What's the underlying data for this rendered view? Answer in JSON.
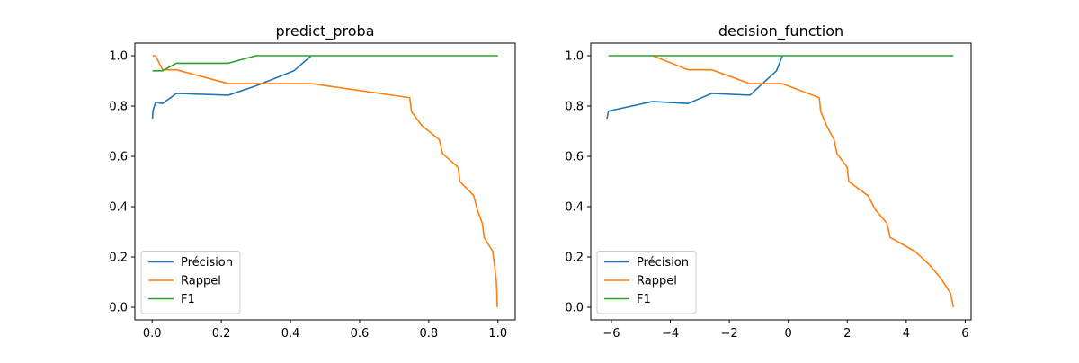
{
  "chart_data": [
    {
      "type": "line",
      "title": "predict_proba",
      "xlabel": "",
      "ylabel": "",
      "xlim": [
        -0.05,
        1.05
      ],
      "ylim": [
        -0.05,
        1.05
      ],
      "xticks": [
        0.0,
        0.2,
        0.4,
        0.6,
        0.8,
        1.0
      ],
      "xtick_labels": [
        "0.0",
        "0.2",
        "0.4",
        "0.6",
        "0.8",
        "1.0"
      ],
      "yticks": [
        0.0,
        0.2,
        0.4,
        0.6,
        0.8,
        1.0
      ],
      "ytick_labels": [
        "0.0",
        "0.2",
        "0.4",
        "0.6",
        "0.8",
        "1.0"
      ],
      "legend_position": "lower-left",
      "series": [
        {
          "name": "Précision",
          "color": "#1f77b4",
          "points": [
            [
              0.001,
              0.75
            ],
            [
              0.002,
              0.78
            ],
            [
              0.01,
              0.815
            ],
            [
              0.03,
              0.81
            ],
            [
              0.07,
              0.85
            ],
            [
              0.22,
              0.843
            ],
            [
              0.3,
              0.88
            ],
            [
              0.41,
              0.94
            ],
            [
              0.46,
              1.0
            ]
          ]
        },
        {
          "name": "Rappel",
          "color": "#ff7f0e",
          "points": [
            [
              0.001,
              1.0
            ],
            [
              0.01,
              1.0
            ],
            [
              0.03,
              0.944
            ],
            [
              0.07,
              0.944
            ],
            [
              0.22,
              0.889
            ],
            [
              0.46,
              0.889
            ],
            [
              0.745,
              0.833
            ],
            [
              0.75,
              0.778
            ],
            [
              0.78,
              0.722
            ],
            [
              0.83,
              0.667
            ],
            [
              0.84,
              0.611
            ],
            [
              0.885,
              0.556
            ],
            [
              0.89,
              0.5
            ],
            [
              0.93,
              0.444
            ],
            [
              0.94,
              0.389
            ],
            [
              0.955,
              0.333
            ],
            [
              0.96,
              0.278
            ],
            [
              0.985,
              0.222
            ],
            [
              0.99,
              0.167
            ],
            [
              0.995,
              0.111
            ],
            [
              0.997,
              0.056
            ],
            [
              0.998,
              0.0
            ]
          ]
        },
        {
          "name": "F1",
          "color": "#2ca02c",
          "points": [
            [
              0.001,
              0.94
            ],
            [
              0.03,
              0.94
            ],
            [
              0.07,
              0.97
            ],
            [
              0.22,
              0.97
            ],
            [
              0.3,
              1.0
            ],
            [
              0.46,
              1.0
            ],
            [
              1.0,
              1.0
            ]
          ]
        }
      ]
    },
    {
      "type": "line",
      "title": "decision_function",
      "xlabel": "",
      "ylabel": "",
      "xlim": [
        -6.7,
        6.2
      ],
      "ylim": [
        -0.05,
        1.05
      ],
      "xticks": [
        -6,
        -4,
        -2,
        0,
        2,
        4,
        6
      ],
      "xtick_labels": [
        "−6",
        "−4",
        "−2",
        "0",
        "2",
        "4",
        "6"
      ],
      "yticks": [
        0.0,
        0.2,
        0.4,
        0.6,
        0.8,
        1.0
      ],
      "ytick_labels": [
        "0.0",
        "0.2",
        "0.4",
        "0.6",
        "0.8",
        "1.0"
      ],
      "legend_position": "lower-left",
      "series": [
        {
          "name": "Précision",
          "color": "#1f77b4",
          "points": [
            [
              -6.15,
              0.75
            ],
            [
              -6.1,
              0.78
            ],
            [
              -4.6,
              0.818
            ],
            [
              -3.4,
              0.81
            ],
            [
              -2.6,
              0.85
            ],
            [
              -1.3,
              0.843
            ],
            [
              -0.4,
              0.94
            ],
            [
              -0.2,
              1.0
            ]
          ]
        },
        {
          "name": "Rappel",
          "color": "#ff7f0e",
          "points": [
            [
              -4.6,
              1.0
            ],
            [
              -3.4,
              0.944
            ],
            [
              -2.6,
              0.944
            ],
            [
              -1.3,
              0.889
            ],
            [
              -0.2,
              0.889
            ],
            [
              1.05,
              0.833
            ],
            [
              1.1,
              0.778
            ],
            [
              1.3,
              0.722
            ],
            [
              1.55,
              0.667
            ],
            [
              1.65,
              0.611
            ],
            [
              2.0,
              0.556
            ],
            [
              2.05,
              0.5
            ],
            [
              2.7,
              0.444
            ],
            [
              2.95,
              0.389
            ],
            [
              3.35,
              0.333
            ],
            [
              3.45,
              0.278
            ],
            [
              4.3,
              0.222
            ],
            [
              4.8,
              0.167
            ],
            [
              5.2,
              0.111
            ],
            [
              5.5,
              0.056
            ],
            [
              5.6,
              0.0
            ]
          ]
        },
        {
          "name": "F1",
          "color": "#2ca02c",
          "points": [
            [
              -6.1,
              1.0
            ],
            [
              5.6,
              1.0
            ]
          ]
        }
      ]
    }
  ]
}
